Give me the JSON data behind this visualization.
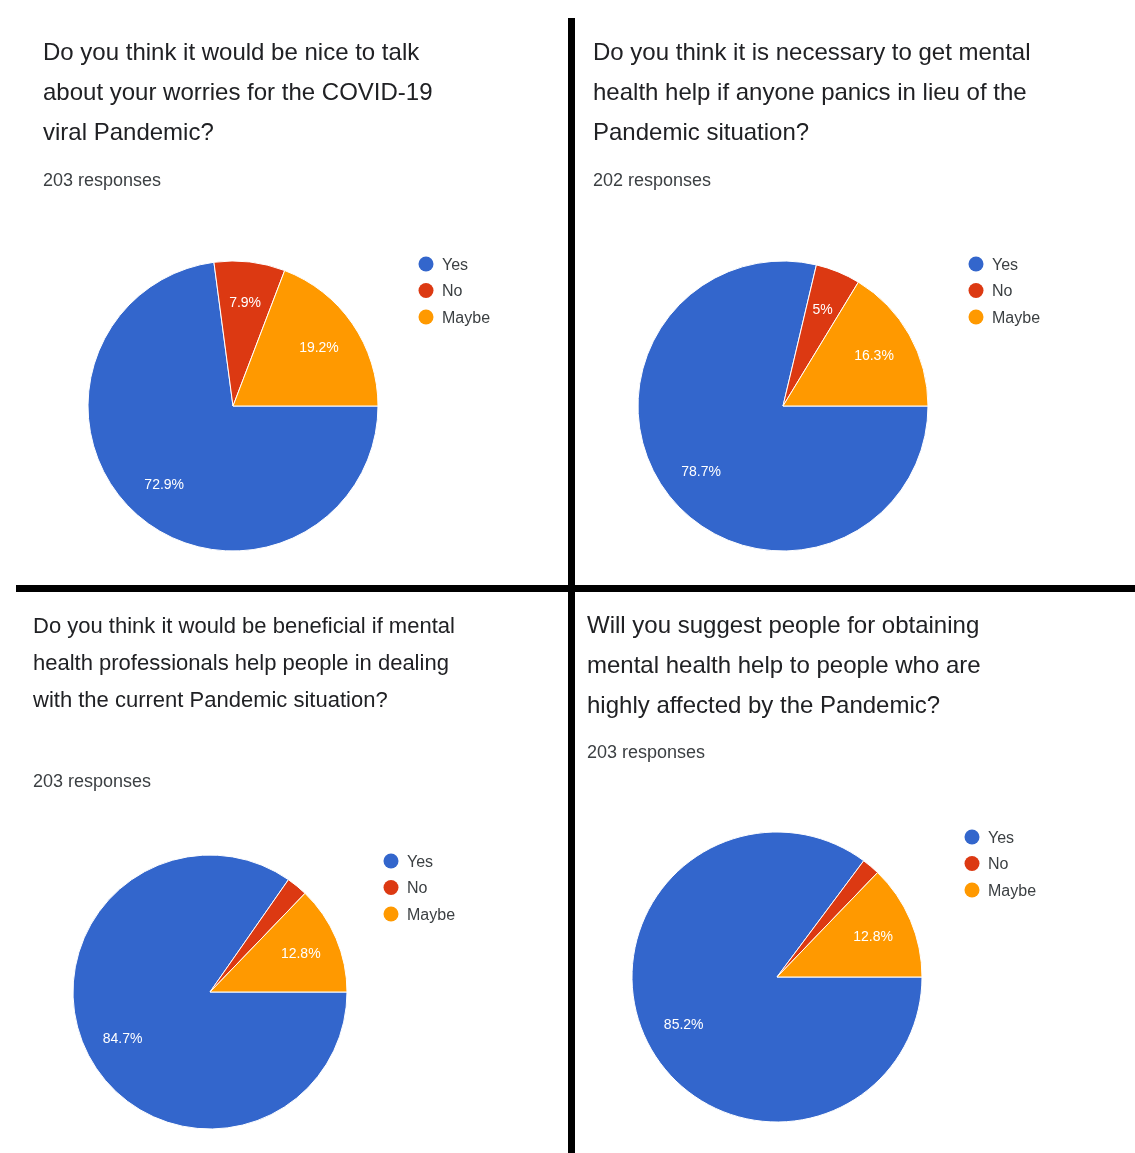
{
  "chart_data": [
    {
      "type": "pie",
      "title": "Do you think it would be nice to talk about your worries for the COVID-19 viral Pandemic?",
      "subtitle": "203 responses",
      "categories": [
        "Yes",
        "No",
        "Maybe"
      ],
      "values": [
        72.9,
        7.9,
        19.2
      ],
      "colors": [
        "#3366cc",
        "#dc3912",
        "#ff9900"
      ],
      "value_labels": [
        "72.9%",
        "7.9%",
        "19.2%"
      ],
      "legend": "right"
    },
    {
      "type": "pie",
      "title": "Do you think it is necessary to get mental health help if anyone panics in lieu of the Pandemic situation?",
      "subtitle": "202 responses",
      "categories": [
        "Yes",
        "No",
        "Maybe"
      ],
      "values": [
        78.7,
        5,
        16.3
      ],
      "colors": [
        "#3366cc",
        "#dc3912",
        "#ff9900"
      ],
      "value_labels": [
        "78.7%",
        "5%",
        "16.3%"
      ],
      "legend": "right"
    },
    {
      "type": "pie",
      "title": "Do you think it would be beneficial if mental health professionals help people in dealing with the current Pandemic situation?",
      "subtitle": "203 responses",
      "categories": [
        "Yes",
        "No",
        "Maybe"
      ],
      "values": [
        84.7,
        2.5,
        12.8
      ],
      "colors": [
        "#3366cc",
        "#dc3912",
        "#ff9900"
      ],
      "value_labels": [
        "84.7%",
        null,
        "12.8%"
      ],
      "legend": "right"
    },
    {
      "type": "pie",
      "title": "Will you suggest people for obtaining mental health help to people who are highly affected by the Pandemic?",
      "subtitle": "203 responses",
      "categories": [
        "Yes",
        "No",
        "Maybe"
      ],
      "values": [
        85.2,
        2,
        12.8
      ],
      "colors": [
        "#3366cc",
        "#dc3912",
        "#ff9900"
      ],
      "value_labels": [
        "85.2%",
        null,
        "12.8%"
      ],
      "legend": "right"
    }
  ]
}
